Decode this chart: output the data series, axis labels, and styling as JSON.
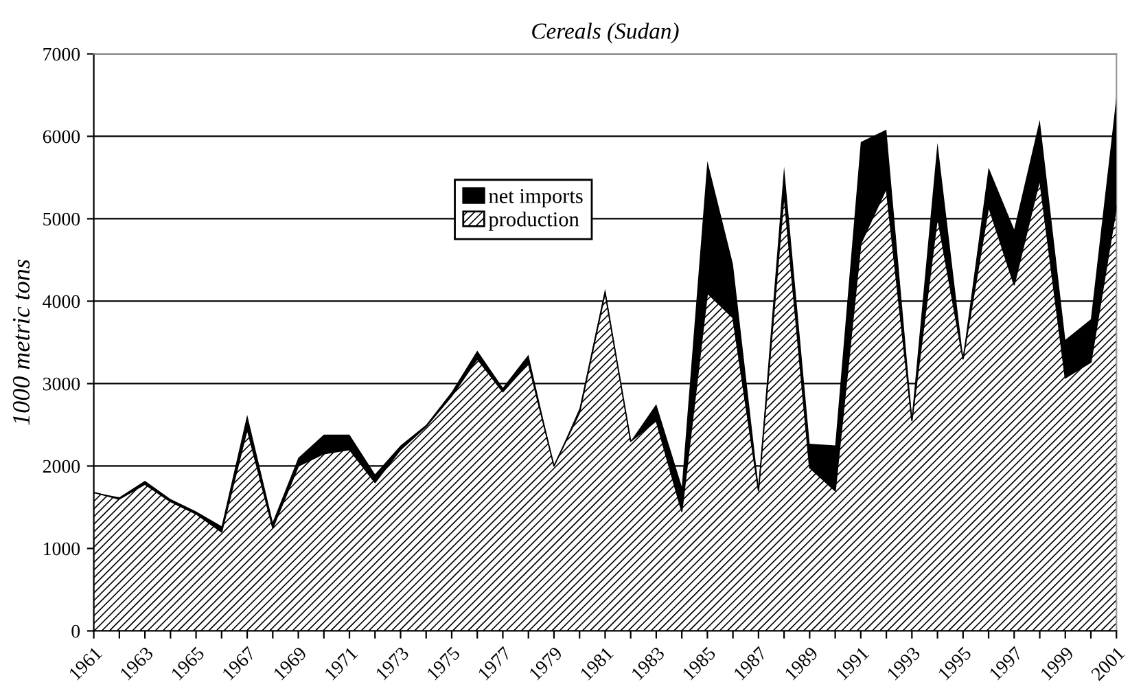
{
  "chart_data": {
    "type": "area",
    "stacked": true,
    "title": "Cereals (Sudan)",
    "ylabel": "1000 metric tons",
    "categories": [
      "1961",
      null,
      "1963",
      null,
      "1965",
      null,
      "1967",
      null,
      "1969",
      null,
      "1971",
      null,
      "1973",
      null,
      "1975",
      null,
      "1977",
      null,
      "1979",
      null,
      "1981",
      null,
      "1983",
      null,
      "1985",
      null,
      "1987",
      null,
      "1989",
      null,
      "1991",
      null,
      "1993",
      null,
      "1995",
      null,
      "1997",
      null,
      "1999",
      null,
      "2001"
    ],
    "series": [
      {
        "name": "production",
        "color": "#ffffff",
        "values": [
          1680,
          1600,
          1780,
          1570,
          1420,
          1200,
          2450,
          1250,
          2000,
          2150,
          2200,
          1800,
          2200,
          2480,
          2850,
          3300,
          2900,
          3250,
          2000,
          2650,
          4100,
          2300,
          2550,
          1450,
          4100,
          3800,
          1700,
          5300,
          1980,
          1700,
          4700,
          5370,
          2550,
          5030,
          3300,
          5150,
          4200,
          5480,
          3070,
          3260,
          5150
        ]
      },
      {
        "name": "net imports",
        "color": "#000000",
        "values": [
          0,
          20,
          40,
          30,
          30,
          70,
          170,
          70,
          100,
          230,
          180,
          100,
          50,
          20,
          50,
          100,
          50,
          100,
          0,
          50,
          50,
          0,
          200,
          300,
          1600,
          650,
          50,
          330,
          290,
          550,
          1230,
          710,
          50,
          890,
          20,
          470,
          670,
          720,
          460,
          520,
          1330
        ]
      }
    ],
    "ylim": [
      0,
      7000
    ],
    "yticks": [
      0,
      1000,
      2000,
      3000,
      4000,
      5000,
      6000,
      7000
    ],
    "grid": "y",
    "legend": "top"
  }
}
